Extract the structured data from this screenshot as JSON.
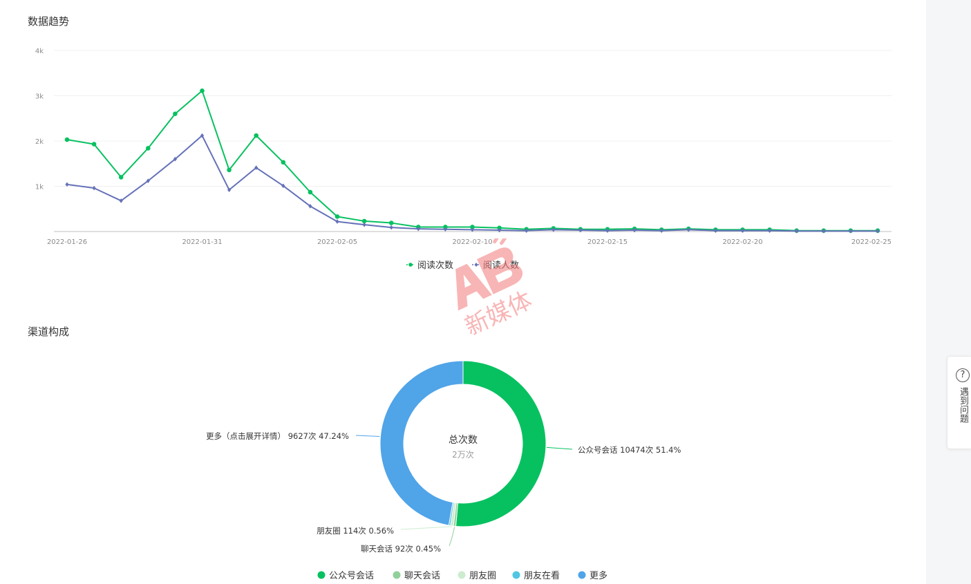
{
  "sections": {
    "trend_title": "数据趋势",
    "channel_title": "渠道构成"
  },
  "help": {
    "icon": "question-circle-icon",
    "label": "遇到问题"
  },
  "watermark": {
    "text": "新媒体",
    "color": "#f47a7a"
  },
  "colors": {
    "read_count": "#07c160",
    "read_users": "#6571b8",
    "channel_gzh": "#07c160",
    "channel_chat": "#91d09a",
    "channel_moments": "#cdeccf",
    "channel_friend_watch": "#4fc7e1",
    "channel_more": "#50a4e8"
  },
  "chart_data": [
    {
      "type": "line",
      "title": "数据趋势",
      "xlabel": "",
      "ylabel": "",
      "x_tick_labels": [
        "2022-01-26",
        "2022-01-31",
        "2022-02-05",
        "2022-02-10",
        "2022-02-15",
        "2022-02-20",
        "2022-02-25"
      ],
      "y_tick_labels": [
        "1k",
        "2k",
        "3k",
        "4k"
      ],
      "ylim": [
        0,
        4000
      ],
      "grid": true,
      "legend_position": "bottom",
      "x": [
        "2022-01-26",
        "2022-01-27",
        "2022-01-28",
        "2022-01-29",
        "2022-01-30",
        "2022-01-31",
        "2022-02-01",
        "2022-02-02",
        "2022-02-03",
        "2022-02-04",
        "2022-02-05",
        "2022-02-06",
        "2022-02-07",
        "2022-02-08",
        "2022-02-09",
        "2022-02-10",
        "2022-02-11",
        "2022-02-12",
        "2022-02-13",
        "2022-02-14",
        "2022-02-15",
        "2022-02-16",
        "2022-02-17",
        "2022-02-18",
        "2022-02-19",
        "2022-02-20",
        "2022-02-21",
        "2022-02-22",
        "2022-02-23",
        "2022-02-24",
        "2022-02-25"
      ],
      "series": [
        {
          "name": "阅读次数",
          "color": "#07c160",
          "marker": "circle",
          "values": [
            2030,
            1930,
            1200,
            1840,
            2600,
            3110,
            1360,
            2120,
            1530,
            870,
            330,
            230,
            190,
            100,
            100,
            100,
            80,
            50,
            70,
            50,
            50,
            60,
            40,
            60,
            40,
            40,
            40,
            20,
            20,
            20,
            20
          ]
        },
        {
          "name": "阅读人数",
          "color": "#6571b8",
          "marker": "diamond",
          "values": [
            1040,
            960,
            680,
            1120,
            1600,
            2120,
            920,
            1410,
            1010,
            560,
            220,
            150,
            90,
            60,
            50,
            40,
            30,
            20,
            40,
            30,
            20,
            30,
            20,
            40,
            20,
            20,
            20,
            10,
            10,
            10,
            10
          ]
        }
      ]
    },
    {
      "type": "pie",
      "title": "渠道构成",
      "donut": true,
      "center_title": "总次数",
      "center_value": "2万次",
      "legend_position": "bottom",
      "slices": [
        {
          "name": "公众号会话",
          "value": 10474,
          "percent": 51.4,
          "label": "公众号会话 10474次 51.4%",
          "color": "#07c160"
        },
        {
          "name": "聊天会话",
          "value": 92,
          "percent": 0.45,
          "label": "聊天会话 92次 0.45%",
          "color": "#91d09a"
        },
        {
          "name": "朋友圈",
          "value": 114,
          "percent": 0.56,
          "label": "朋友圈 114次 0.56%",
          "color": "#cdeccf"
        },
        {
          "name": "朋友在看",
          "value": 70,
          "percent": 0.35,
          "label": "",
          "color": "#4fc7e1"
        },
        {
          "name": "更多",
          "value": 9627,
          "percent": 47.24,
          "label": "更多（点击展开详情） 9627次 47.24%",
          "color": "#50a4e8"
        }
      ],
      "legend": [
        "公众号会话",
        "聊天会话",
        "朋友圈",
        "朋友在看",
        "更多"
      ]
    }
  ]
}
